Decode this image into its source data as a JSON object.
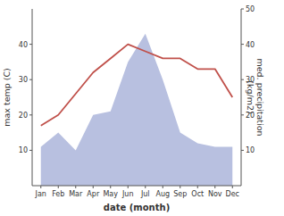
{
  "chart_data": {
    "type": "line",
    "categories": [
      "Jan",
      "Feb",
      "Mar",
      "Apr",
      "May",
      "Jun",
      "Jul",
      "Aug",
      "Sep",
      "Oct",
      "Nov",
      "Dec"
    ],
    "xlabel": "date (month)",
    "ylabel": "max temp (C)",
    "y2label": "med. precipitation\n(kg/m2)",
    "ylim": [
      0,
      50
    ],
    "yticks": [
      10,
      20,
      30,
      40
    ],
    "y2lim": [
      0,
      50
    ],
    "y2ticks": [
      10,
      20,
      30,
      40,
      50
    ],
    "series": [
      {
        "type": "area",
        "axis": "y2",
        "color": "#b8c0e0",
        "values": [
          11,
          15,
          10,
          20,
          21,
          35,
          43,
          30,
          15,
          12,
          11,
          11
        ]
      },
      {
        "type": "line",
        "color": "#c0504a",
        "values": [
          17,
          20,
          26,
          32,
          36,
          40,
          38,
          36,
          36,
          33,
          33,
          25
        ]
      }
    ]
  }
}
